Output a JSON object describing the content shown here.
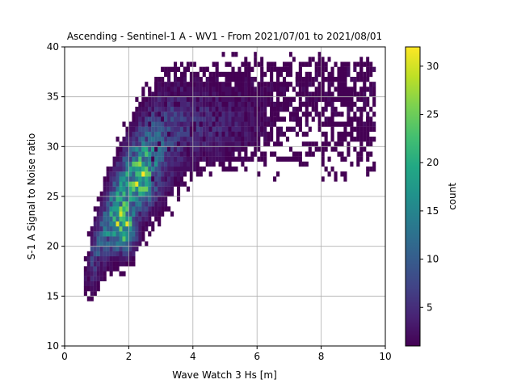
{
  "chart_data": {
    "type": "heatmap",
    "title": "Ascending - Sentinel-1 A - WV1 - From 2021/07/01 to 2021/08/01",
    "xlabel": "Wave Watch 3 Hs [m]",
    "ylabel": "S-1 A Signal to Noise ratio",
    "xlim": [
      0,
      10
    ],
    "ylim": [
      10,
      40
    ],
    "xticks": [
      0,
      2,
      4,
      6,
      8,
      10
    ],
    "yticks": [
      10,
      15,
      20,
      25,
      30,
      35,
      40
    ],
    "grid": true,
    "colorbar": {
      "label": "count",
      "colormap": "viridis",
      "range": [
        1,
        32
      ],
      "ticks": [
        5,
        10,
        15,
        20,
        25,
        30
      ]
    },
    "bins": {
      "x_bin_width": 0.1,
      "y_bin_height": 0.5
    },
    "density_clusters": [
      {
        "hs_center": 1.8,
        "snr_center": 21.5,
        "peak_count": 32
      },
      {
        "hs_center": 2.4,
        "snr_center": 26.5,
        "peak_count": 20
      },
      {
        "hs_center": 4.5,
        "snr_center": 32.0,
        "peak_count": 6
      }
    ],
    "colors": {
      "low": "#440154",
      "mid": "#21918c",
      "high": "#fde725"
    }
  }
}
